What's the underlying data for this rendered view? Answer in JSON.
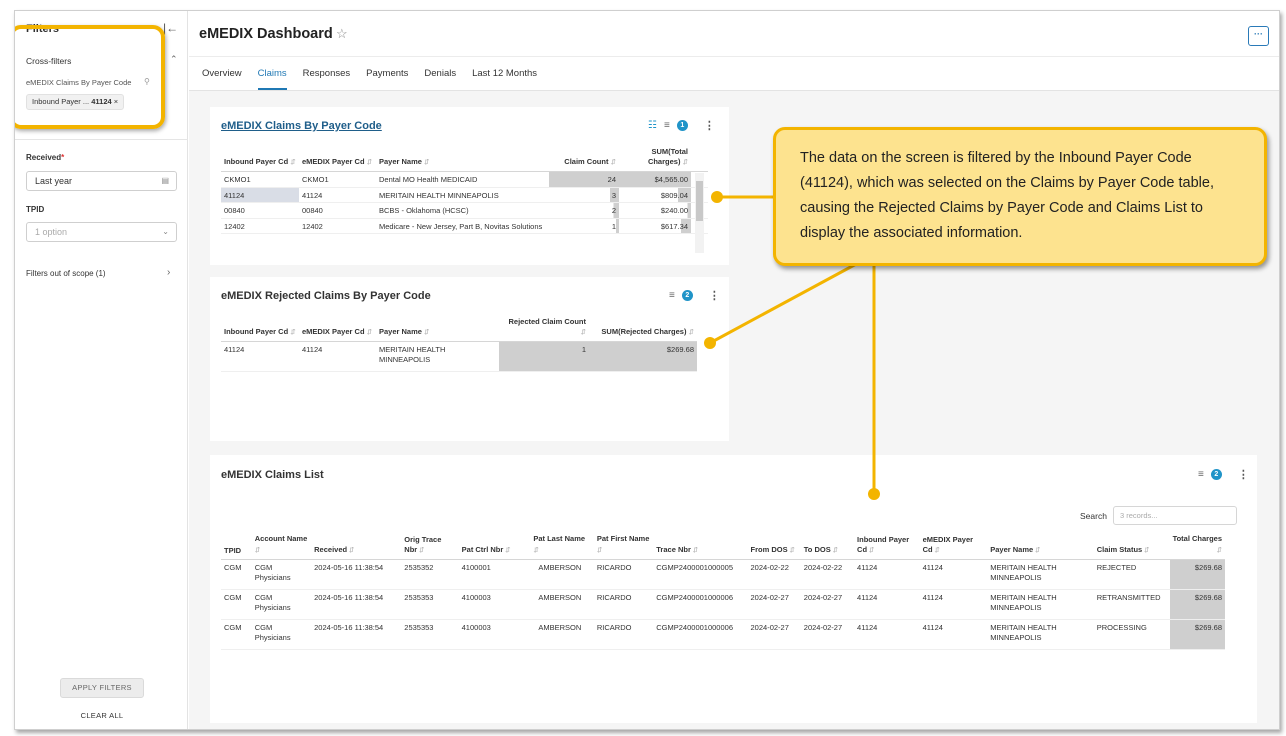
{
  "sidebar": {
    "title": "Filters",
    "cross_filters_label": "Cross-filters",
    "cross_filter_item": "eMEDIX Claims By Payer Code",
    "chip_label": "Inbound Payer ...",
    "chip_value": "41124",
    "received_label": "Received",
    "received_required": "*",
    "received_value": "Last year",
    "tpid_label": "TPID",
    "tpid_placeholder": "1 option",
    "filters_out_of_scope": "Filters out of scope (1)",
    "apply_button": "APPLY FILTERS",
    "clear_button": "CLEAR ALL"
  },
  "header": {
    "title": "eMEDIX Dashboard",
    "more_label": "···",
    "tabs": [
      {
        "label": "Overview"
      },
      {
        "label": "Claims"
      },
      {
        "label": "Responses"
      },
      {
        "label": "Payments"
      },
      {
        "label": "Denials"
      },
      {
        "label": "Last 12 Months"
      }
    ],
    "active_tab": "Claims"
  },
  "claims_by_payer": {
    "title": "eMEDIX Claims By Payer Code",
    "filter_count": "1",
    "columns": [
      "Inbound Payer Cd",
      "eMEDIX Payer Cd",
      "Payer Name",
      "Claim Count",
      "SUM(Total Charges)"
    ],
    "rows": [
      {
        "inbound": "CKMO1",
        "emedix": "CKMO1",
        "payer": "Dental MO Health MEDICAID",
        "count": "24",
        "sum": "$4,565.00",
        "count_frac": 1.0,
        "sum_frac": 1.0
      },
      {
        "inbound": "41124",
        "emedix": "41124",
        "payer": "MERITAIN HEALTH MINNEAPOLIS",
        "count": "3",
        "sum": "$809.04",
        "count_frac": 0.125,
        "sum_frac": 0.177
      },
      {
        "inbound": "00840",
        "emedix": "00840",
        "payer": "BCBS - Oklahoma (HCSC)",
        "count": "2",
        "sum": "$240.00",
        "count_frac": 0.083,
        "sum_frac": 0.053
      },
      {
        "inbound": "12402",
        "emedix": "12402",
        "payer": "Medicare - New Jersey, Part B, Novitas Solutions",
        "count": "1",
        "sum": "$617.34",
        "count_frac": 0.042,
        "sum_frac": 0.135
      }
    ]
  },
  "rejected_by_payer": {
    "title": "eMEDIX Rejected Claims By Payer Code",
    "filter_count": "2",
    "columns": [
      "Inbound Payer Cd",
      "eMEDIX Payer Cd",
      "Payer Name",
      "Rejected Claim Count",
      "SUM(Rejected Charges)"
    ],
    "rows": [
      {
        "inbound": "41124",
        "emedix": "41124",
        "payer": "MERITAIN HEALTH MINNEAPOLIS",
        "count": "1",
        "sum": "$269.68"
      }
    ]
  },
  "claims_list": {
    "title": "eMEDIX Claims List",
    "filter_count": "2",
    "search_label": "Search",
    "search_placeholder": "3 records...",
    "columns": [
      "TPID",
      "Account Name",
      "Received",
      "Orig Trace Nbr",
      "Pat Ctrl Nbr",
      "Pat Last Name",
      "Pat First Name",
      "Trace Nbr",
      "From DOS",
      "To DOS",
      "Inbound Payer Cd",
      "eMEDIX Payer Cd",
      "Payer Name",
      "Claim Status",
      "Total Charges"
    ],
    "rows": [
      [
        "CGM",
        "CGM Physicians",
        "2024-05-16 11:38:54",
        "2535352",
        "4100001",
        "AMBERSON",
        "RICARDO",
        "CGMP2400001000005",
        "2024-02-22",
        "2024-02-22",
        "41124",
        "41124",
        "MERITAIN HEALTH MINNEAPOLIS",
        "REJECTED",
        "$269.68"
      ],
      [
        "CGM",
        "CGM Physicians",
        "2024-05-16 11:38:54",
        "2535353",
        "4100003",
        "AMBERSON",
        "RICARDO",
        "CGMP2400001000006",
        "2024-02-27",
        "2024-02-27",
        "41124",
        "41124",
        "MERITAIN HEALTH MINNEAPOLIS",
        "RETRANSMITTED",
        "$269.68"
      ],
      [
        "CGM",
        "CGM Physicians",
        "2024-05-16 11:38:54",
        "2535353",
        "4100003",
        "AMBERSON",
        "RICARDO",
        "CGMP2400001000006",
        "2024-02-27",
        "2024-02-27",
        "41124",
        "41124",
        "MERITAIN HEALTH MINNEAPOLIS",
        "PROCESSING",
        "$269.68"
      ]
    ]
  },
  "callout": {
    "text": "The data on the screen is filtered by the Inbound Payer Code (41124), which was selected on the Claims by Payer Code table, causing the Rejected Claims by Payer Code and Claims List to display the associated information."
  },
  "colors": {
    "accent": "#1f78b4",
    "highlight": "#f3b400",
    "callout_bg": "#fde38f",
    "bar_fill": "#cfcfcf",
    "badge": "#2094c8"
  }
}
